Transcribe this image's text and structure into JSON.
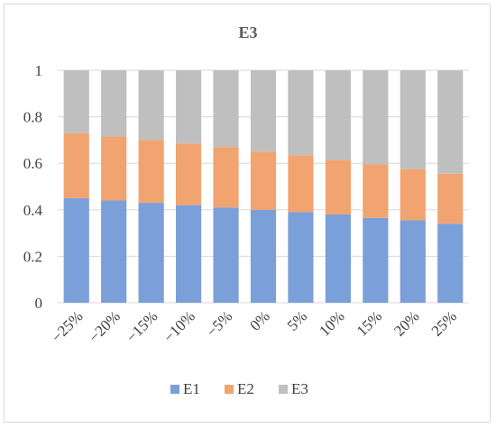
{
  "chart_data": {
    "type": "bar",
    "stacked": true,
    "title": "E3",
    "xlabel": "",
    "ylabel": "",
    "categories": [
      "−25%",
      "−20%",
      "−15%",
      "−10%",
      "−5%",
      "0%",
      "5%",
      "10%",
      "15%",
      "20%",
      "25%"
    ],
    "series": [
      {
        "name": "E1",
        "color": "#7b9fd8",
        "values": [
          0.45,
          0.44,
          0.43,
          0.42,
          0.41,
          0.4,
          0.39,
          0.38,
          0.365,
          0.355,
          0.34
        ]
      },
      {
        "name": "E2",
        "color": "#f1a470",
        "values": [
          0.28,
          0.275,
          0.27,
          0.265,
          0.26,
          0.25,
          0.245,
          0.235,
          0.23,
          0.22,
          0.215
        ]
      },
      {
        "name": "E3",
        "color": "#bfbfbf",
        "values": [
          0.27,
          0.285,
          0.3,
          0.315,
          0.33,
          0.35,
          0.365,
          0.385,
          0.405,
          0.425,
          0.445
        ]
      }
    ],
    "ylim": [
      0,
      1
    ],
    "yticks": [
      0,
      0.2,
      0.4,
      0.6,
      0.8,
      1
    ],
    "ytick_labels": [
      "0",
      "0.2",
      "0.4",
      "0.6",
      "0.8",
      "1"
    ],
    "grid": true,
    "legend": "bottom"
  }
}
